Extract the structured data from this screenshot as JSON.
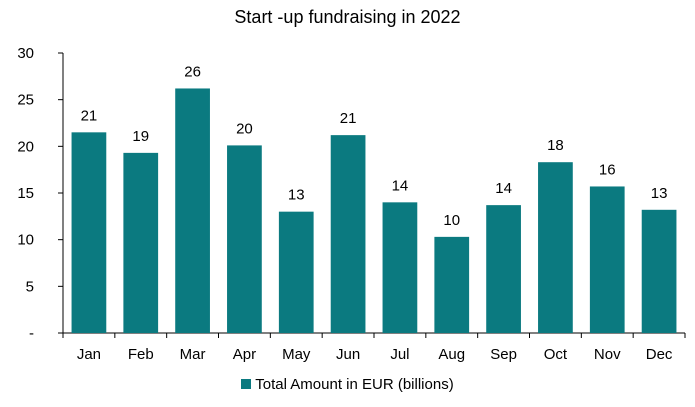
{
  "chart_data": {
    "type": "bar",
    "title": "Start -up fundraising in 2022",
    "categories": [
      "Jan",
      "Feb",
      "Mar",
      "Apr",
      "May",
      "Jun",
      "Jul",
      "Aug",
      "Sep",
      "Oct",
      "Nov",
      "Dec"
    ],
    "series": [
      {
        "name": "Total Amount in EUR (billions)",
        "values": [
          21.5,
          19.3,
          26.2,
          20.1,
          13.0,
          21.2,
          14.0,
          10.3,
          13.7,
          18.3,
          15.7,
          13.2
        ],
        "labels": [
          "21",
          "19",
          "26",
          "20",
          "13",
          "21",
          "14",
          "10",
          "14",
          "18",
          "16",
          "13"
        ],
        "color": "#0b7a80"
      }
    ],
    "y_ticks": [
      "-",
      "5",
      "10",
      "15",
      "20",
      "25",
      "30"
    ],
    "ylim": [
      0,
      30
    ],
    "grid": false,
    "legend_position": "bottom"
  }
}
